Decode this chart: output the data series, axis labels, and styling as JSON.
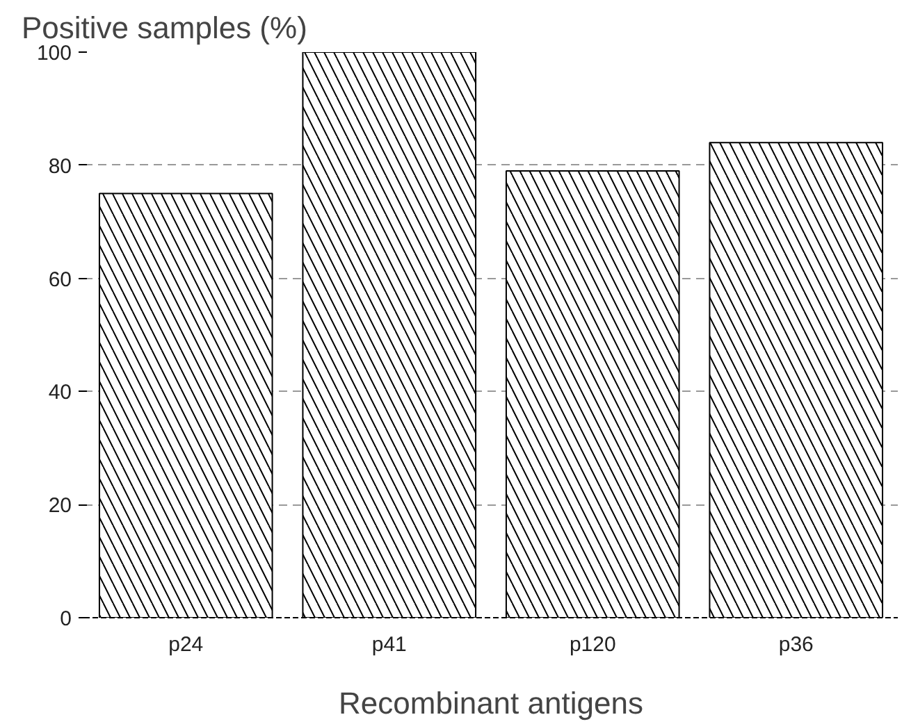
{
  "chart_data": {
    "type": "bar",
    "ylabel": "Positive samples (%)",
    "xlabel": "Recombinant antigens",
    "categories": [
      "p24",
      "p41",
      "p120",
      "p36"
    ],
    "values": [
      75,
      100,
      79,
      84
    ],
    "color": "#000000",
    "ylim": [
      0,
      100
    ],
    "yticks": [
      0,
      20,
      40,
      60,
      80,
      100
    ],
    "grid": "y"
  }
}
